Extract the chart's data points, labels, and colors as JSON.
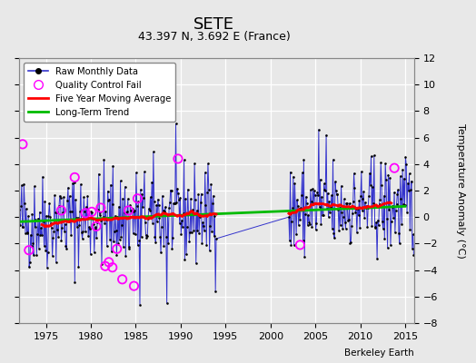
{
  "title": "SETE",
  "subtitle": "43.397 N, 3.692 E (France)",
  "ylabel": "Temperature Anomaly (°C)",
  "credit": "Berkeley Earth",
  "xlim": [
    1972,
    2016
  ],
  "ylim": [
    -8,
    12
  ],
  "yticks": [
    -8,
    -6,
    -4,
    -2,
    0,
    2,
    4,
    6,
    8,
    10,
    12
  ],
  "xticks": [
    1975,
    1980,
    1985,
    1990,
    1995,
    2000,
    2005,
    2010,
    2015
  ],
  "bg_color": "#e8e8e8",
  "plot_bg_color": "#e8e8e8",
  "grid_color": "white",
  "raw_line_color": "#3333cc",
  "raw_marker_color": "black",
  "ma_color": "red",
  "trend_color": "#00bb00",
  "qc_marker_color": "magenta",
  "gap_start": 1994,
  "gap_end": 2002,
  "start_year": 1972,
  "end_year": 2015,
  "trend_slope": 0.027,
  "trend_intercept": -0.35,
  "qc_times": [
    1972.4,
    1973.1,
    1976.7,
    1978.2,
    1979.4,
    1980.1,
    1980.6,
    1981.1,
    1981.6,
    1982.0,
    1982.4,
    1982.9,
    1983.5,
    1984.2,
    1984.8,
    1985.2,
    1989.7,
    2003.3,
    2013.8
  ],
  "qc_values": [
    5.5,
    -2.5,
    0.5,
    3.0,
    0.3,
    0.4,
    -0.7,
    0.7,
    -3.7,
    -3.4,
    -3.8,
    -2.4,
    -4.7,
    0.5,
    -5.2,
    1.4,
    4.4,
    -2.1,
    3.7
  ]
}
